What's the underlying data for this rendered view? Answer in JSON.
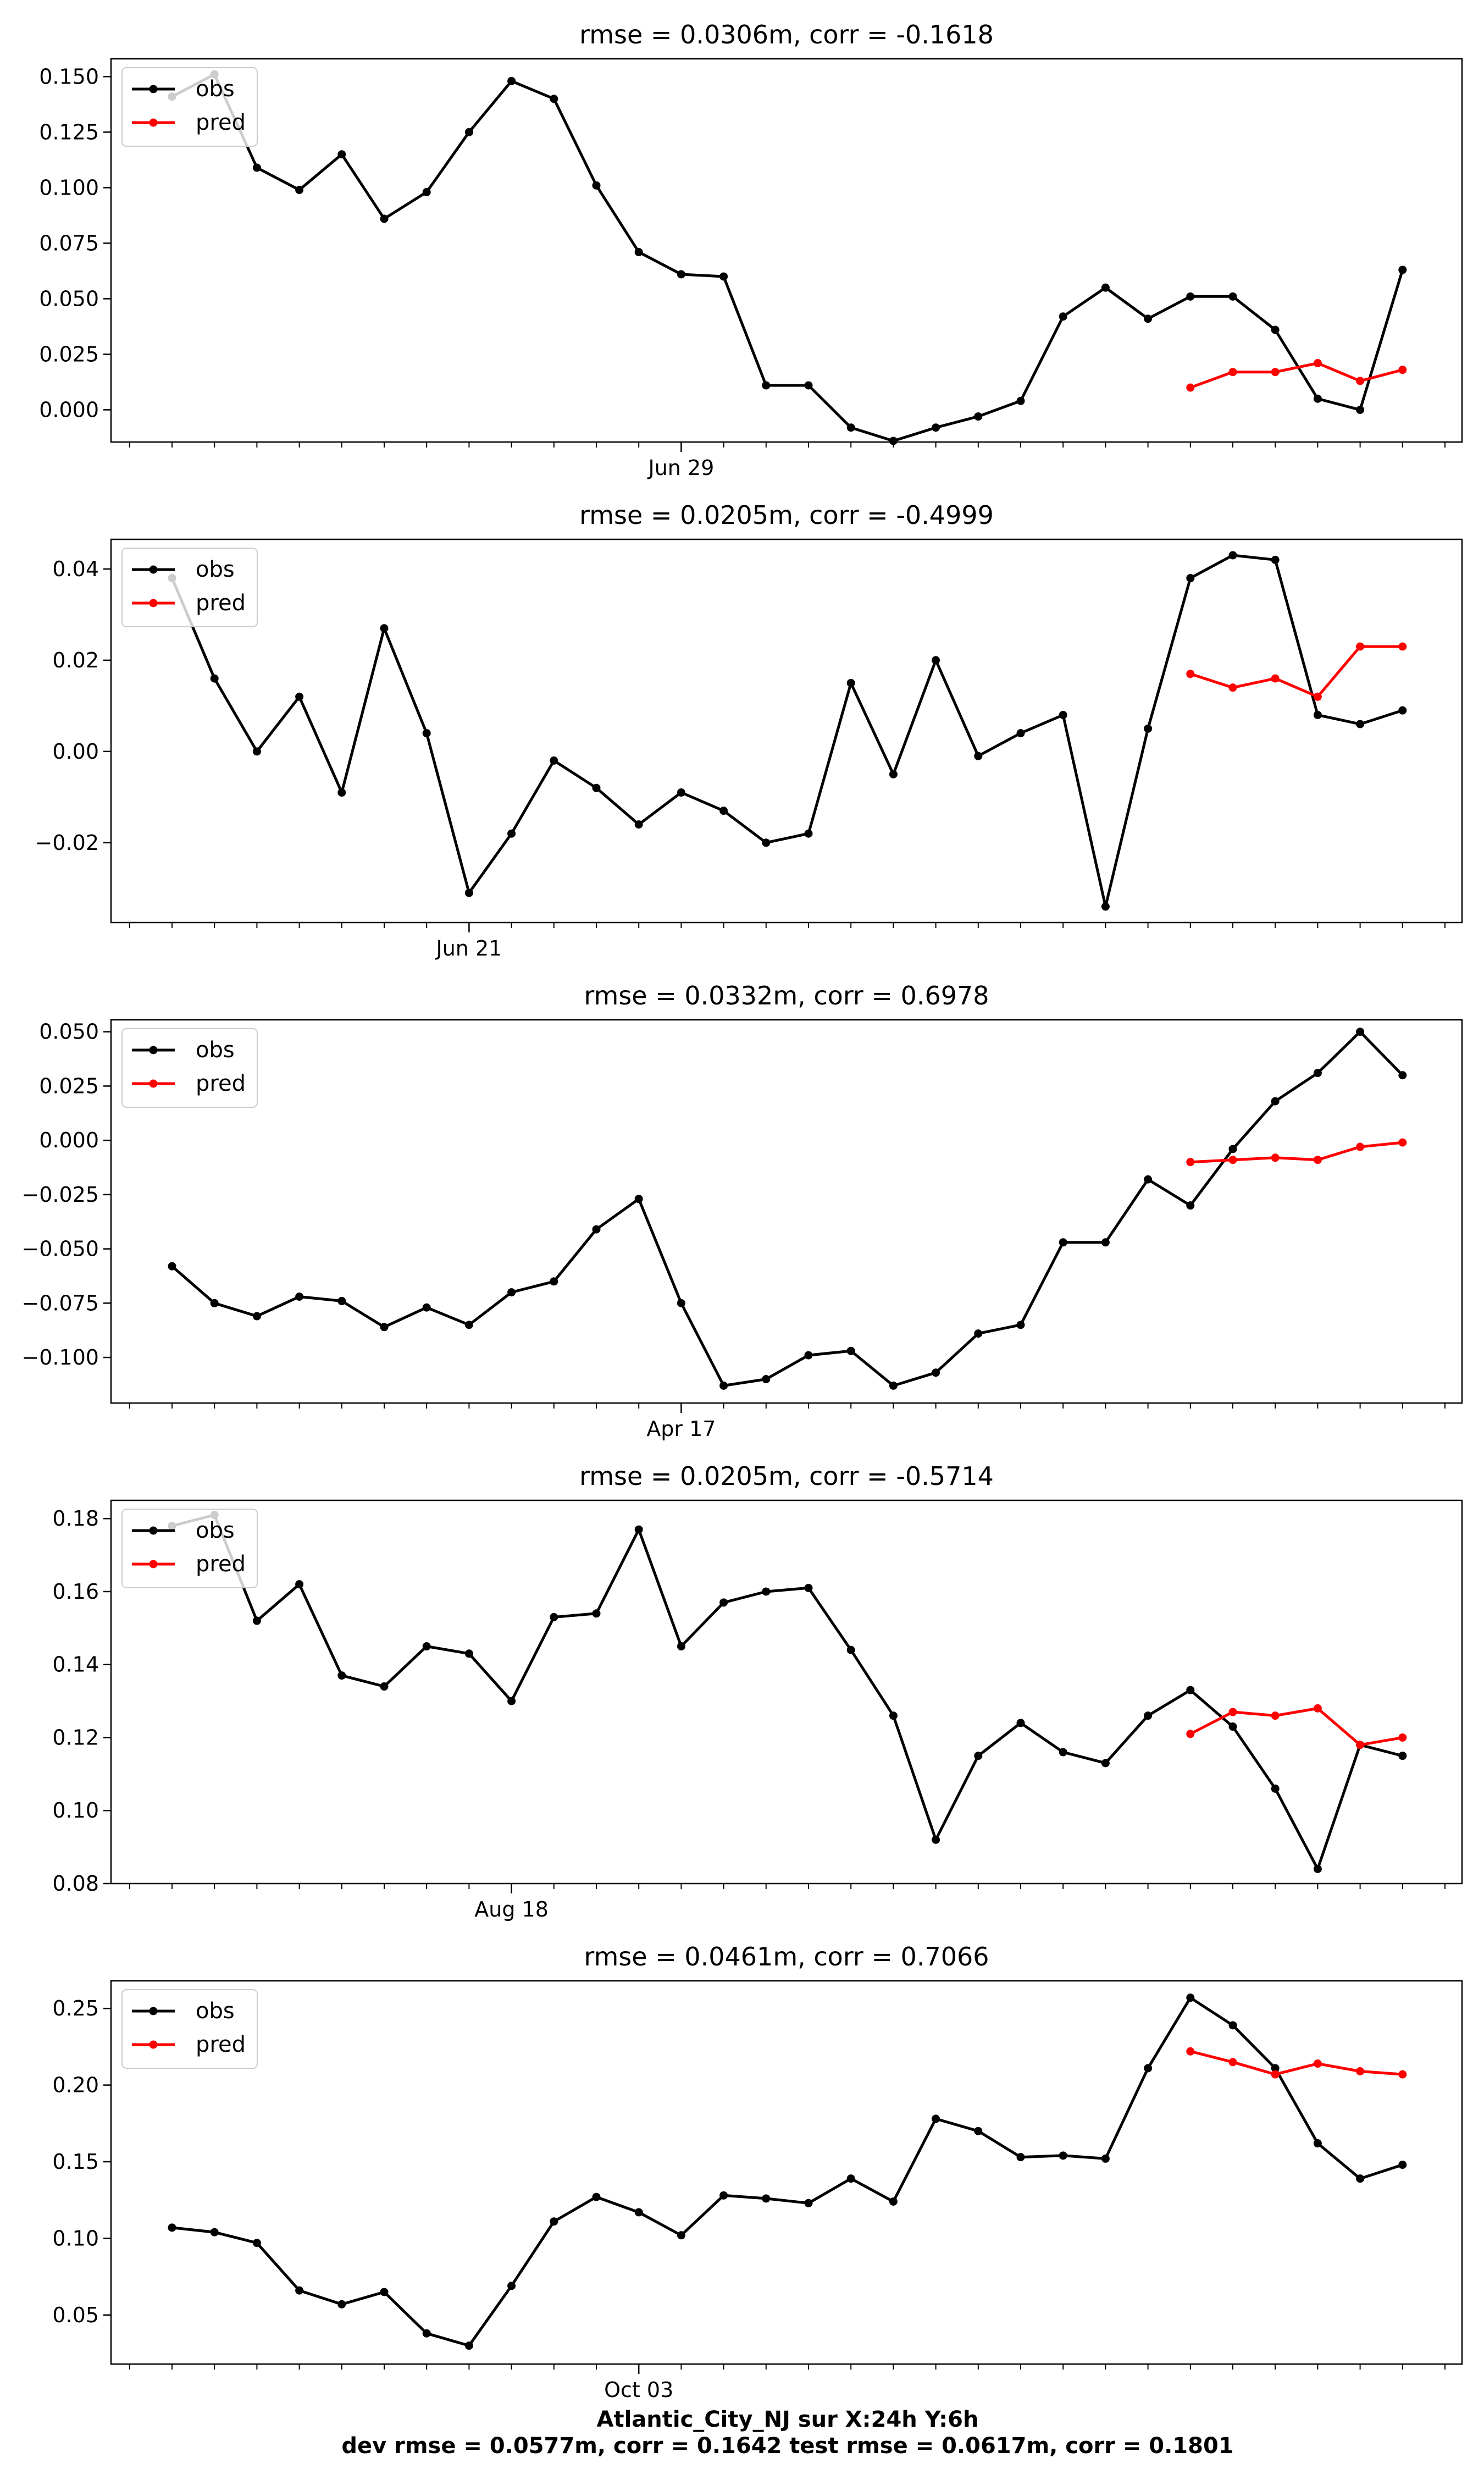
{
  "chart_data": [
    {
      "type": "line",
      "title": "rmse = 0.0306m, corr = -0.1618",
      "date_tick": {
        "label": "Jun 29",
        "at_index": 12
      },
      "yticks": [
        "0.000",
        "0.025",
        "0.050",
        "0.075",
        "0.100",
        "0.125",
        "0.150"
      ],
      "ytick_values": [
        0.0,
        0.025,
        0.05,
        0.075,
        0.1,
        0.125,
        0.15
      ],
      "ylim": [
        -0.0145,
        0.158
      ],
      "legend": [
        "obs",
        "pred"
      ],
      "legend_position": "upper-left",
      "series": [
        {
          "name": "obs",
          "color": "#000000",
          "start_index": 0,
          "values": [
            0.141,
            0.151,
            0.109,
            0.099,
            0.115,
            0.086,
            0.098,
            0.125,
            0.148,
            0.14,
            0.101,
            0.071,
            0.061,
            0.06,
            0.011,
            0.011,
            -0.008,
            -0.014,
            -0.008,
            -0.003,
            0.004,
            0.042,
            0.055,
            0.041,
            0.051,
            0.051,
            0.036,
            0.005,
            0.0,
            0.063
          ]
        },
        {
          "name": "pred",
          "color": "#ff0000",
          "start_index": 24,
          "values": [
            0.01,
            0.017,
            0.017,
            0.021,
            0.013,
            0.018
          ]
        }
      ]
    },
    {
      "type": "line",
      "title": "rmse = 0.0205m, corr = -0.4999",
      "date_tick": {
        "label": "Jun 21",
        "at_index": 7
      },
      "yticks": [
        "−0.02",
        "0.00",
        "0.02",
        "0.04"
      ],
      "ytick_values": [
        -0.02,
        0.0,
        0.02,
        0.04
      ],
      "ylim": [
        -0.0375,
        0.0465
      ],
      "legend": [
        "obs",
        "pred"
      ],
      "legend_position": "upper-left",
      "series": [
        {
          "name": "obs",
          "color": "#000000",
          "start_index": 0,
          "values": [
            0.038,
            0.016,
            0.0,
            0.012,
            -0.009,
            0.027,
            0.004,
            -0.031,
            -0.018,
            -0.002,
            -0.008,
            -0.016,
            -0.009,
            -0.013,
            -0.02,
            -0.018,
            0.015,
            -0.005,
            0.02,
            -0.001,
            0.004,
            0.008,
            -0.034,
            0.005,
            0.038,
            0.043,
            0.042,
            0.008,
            0.006,
            0.009
          ]
        },
        {
          "name": "pred",
          "color": "#ff0000",
          "start_index": 24,
          "values": [
            0.017,
            0.014,
            0.016,
            0.012,
            0.023,
            0.023
          ]
        }
      ]
    },
    {
      "type": "line",
      "title": "rmse = 0.0332m, corr = 0.6978",
      "date_tick": {
        "label": "Apr 17",
        "at_index": 12
      },
      "yticks": [
        "−0.100",
        "−0.075",
        "−0.050",
        "−0.025",
        "0.000",
        "0.025",
        "0.050"
      ],
      "ytick_values": [
        -0.1,
        -0.075,
        -0.05,
        -0.025,
        0.0,
        0.025,
        0.05
      ],
      "ylim": [
        -0.121,
        0.0555
      ],
      "legend": [
        "obs",
        "pred"
      ],
      "legend_position": "upper-left",
      "series": [
        {
          "name": "obs",
          "color": "#000000",
          "start_index": 0,
          "values": [
            -0.058,
            -0.075,
            -0.081,
            -0.072,
            -0.074,
            -0.086,
            -0.077,
            -0.085,
            -0.07,
            -0.065,
            -0.041,
            -0.027,
            -0.075,
            -0.113,
            -0.11,
            -0.099,
            -0.097,
            -0.113,
            -0.107,
            -0.089,
            -0.085,
            -0.047,
            -0.047,
            -0.018,
            -0.03,
            -0.004,
            0.018,
            0.031,
            0.05,
            0.03
          ]
        },
        {
          "name": "pred",
          "color": "#ff0000",
          "start_index": 24,
          "values": [
            -0.01,
            -0.009,
            -0.008,
            -0.009,
            -0.003,
            -0.001
          ]
        }
      ]
    },
    {
      "type": "line",
      "title": "rmse = 0.0205m, corr = -0.5714",
      "date_tick": {
        "label": "Aug 18",
        "at_index": 8
      },
      "yticks": [
        "0.08",
        "0.10",
        "0.12",
        "0.14",
        "0.16",
        "0.18"
      ],
      "ytick_values": [
        0.08,
        0.1,
        0.12,
        0.14,
        0.16,
        0.18
      ],
      "ylim": [
        0.08,
        0.185
      ],
      "legend": [
        "obs",
        "pred"
      ],
      "legend_position": "upper-left",
      "series": [
        {
          "name": "obs",
          "color": "#000000",
          "start_index": 0,
          "values": [
            0.178,
            0.181,
            0.152,
            0.162,
            0.137,
            0.134,
            0.145,
            0.143,
            0.13,
            0.153,
            0.154,
            0.177,
            0.145,
            0.157,
            0.16,
            0.161,
            0.144,
            0.126,
            0.092,
            0.115,
            0.124,
            0.116,
            0.113,
            0.126,
            0.133,
            0.123,
            0.106,
            0.084,
            0.118,
            0.115
          ]
        },
        {
          "name": "pred",
          "color": "#ff0000",
          "start_index": 24,
          "values": [
            0.121,
            0.127,
            0.126,
            0.128,
            0.118,
            0.12
          ]
        }
      ]
    },
    {
      "type": "line",
      "title": "rmse = 0.0461m, corr = 0.7066",
      "date_tick": {
        "label": "Oct 03",
        "at_index": 11
      },
      "yticks": [
        "0.05",
        "0.10",
        "0.15",
        "0.20",
        "0.25"
      ],
      "ytick_values": [
        0.05,
        0.1,
        0.15,
        0.2,
        0.25
      ],
      "ylim": [
        0.018,
        0.268
      ],
      "legend": [
        "obs",
        "pred"
      ],
      "legend_position": "upper-left",
      "series": [
        {
          "name": "obs",
          "color": "#000000",
          "start_index": 0,
          "values": [
            0.107,
            0.104,
            0.097,
            0.066,
            0.057,
            0.065,
            0.038,
            0.03,
            0.069,
            0.111,
            0.127,
            0.117,
            0.102,
            0.128,
            0.126,
            0.123,
            0.139,
            0.124,
            0.178,
            0.17,
            0.153,
            0.154,
            0.152,
            0.211,
            0.257,
            0.239,
            0.211,
            0.162,
            0.139,
            0.148
          ]
        },
        {
          "name": "pred",
          "color": "#ff0000",
          "start_index": 24,
          "values": [
            0.222,
            0.215,
            0.207,
            0.214,
            0.209,
            0.207
          ]
        }
      ]
    }
  ],
  "footer": {
    "line1": "Atlantic_City_NJ   sur   X:24h   Y:6h",
    "line2": "dev rmse = 0.0577m, corr = 0.1642   test rmse = 0.0617m, corr = 0.1801"
  }
}
